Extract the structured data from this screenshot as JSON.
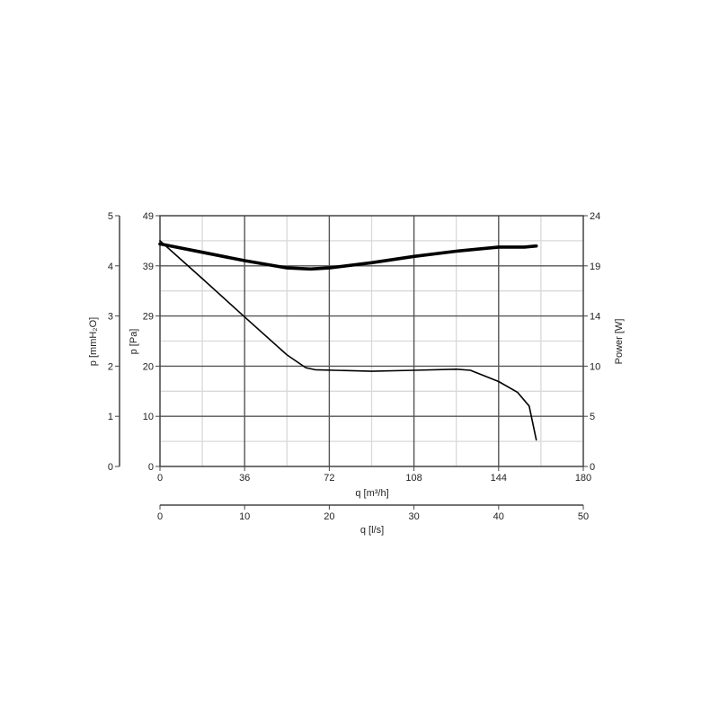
{
  "chart_data": {
    "type": "line",
    "axes": {
      "x_m3h": {
        "label": "q [m³/h]",
        "range": [
          0,
          180
        ],
        "ticks": [
          "0",
          "36",
          "72",
          "108",
          "144",
          "180"
        ]
      },
      "x_ls": {
        "label": "q [l/s]",
        "range": [
          0,
          50
        ],
        "ticks": [
          "0",
          "10",
          "20",
          "30",
          "40",
          "50"
        ]
      },
      "y_pa": {
        "label": "p [Pa]",
        "range": [
          0,
          49
        ],
        "ticks": [
          "0",
          "10",
          "20",
          "29",
          "39",
          "49"
        ]
      },
      "y_mmh2o": {
        "label": "p [mmH₂O]",
        "range": [
          0,
          5
        ],
        "ticks": [
          "0",
          "1",
          "2",
          "3",
          "4",
          "5"
        ]
      },
      "y_power": {
        "label": "Power [W]",
        "range": [
          0,
          24
        ],
        "ticks": [
          "0",
          "5",
          "10",
          "14",
          "19",
          "24"
        ]
      }
    },
    "grid": true,
    "series": [
      {
        "role": "pressure",
        "axis": "y_pa",
        "stroke": "#000000",
        "line_weight": "thin",
        "points": [
          [
            0,
            44.1
          ],
          [
            18,
            36.7
          ],
          [
            36,
            29.2
          ],
          [
            54,
            21.8
          ],
          [
            62,
            19.3
          ],
          [
            66,
            18.9
          ],
          [
            90,
            18.6
          ],
          [
            108,
            18.8
          ],
          [
            126,
            19.0
          ],
          [
            132,
            18.8
          ],
          [
            144,
            16.6
          ],
          [
            152,
            14.5
          ],
          [
            157,
            11.8
          ],
          [
            160,
            5.2
          ]
        ]
      },
      {
        "role": "power",
        "axis": "y_power",
        "stroke": "#000000",
        "line_weight": "thick",
        "points": [
          [
            0,
            21.3
          ],
          [
            18,
            20.5
          ],
          [
            36,
            19.7
          ],
          [
            54,
            19.0
          ],
          [
            64,
            18.9
          ],
          [
            72,
            19.0
          ],
          [
            90,
            19.5
          ],
          [
            108,
            20.1
          ],
          [
            126,
            20.6
          ],
          [
            144,
            21.0
          ],
          [
            155,
            21.0
          ],
          [
            160,
            21.1
          ]
        ]
      }
    ]
  }
}
